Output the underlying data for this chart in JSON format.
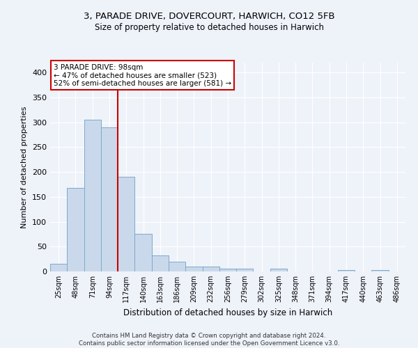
{
  "title1": "3, PARADE DRIVE, DOVERCOURT, HARWICH, CO12 5FB",
  "title2": "Size of property relative to detached houses in Harwich",
  "xlabel": "Distribution of detached houses by size in Harwich",
  "ylabel": "Number of detached properties",
  "categories": [
    "25sqm",
    "48sqm",
    "71sqm",
    "94sqm",
    "117sqm",
    "140sqm",
    "163sqm",
    "186sqm",
    "209sqm",
    "232sqm",
    "256sqm",
    "279sqm",
    "302sqm",
    "325sqm",
    "348sqm",
    "371sqm",
    "394sqm",
    "417sqm",
    "440sqm",
    "463sqm",
    "486sqm"
  ],
  "values": [
    15,
    168,
    305,
    290,
    190,
    76,
    32,
    20,
    10,
    10,
    5,
    6,
    0,
    5,
    0,
    0,
    0,
    3,
    0,
    3,
    0
  ],
  "bar_color": "#c9d9eb",
  "bar_edge_color": "#7fa8c9",
  "vline_x": 3.5,
  "vline_color": "#cc0000",
  "annotation_text": "3 PARADE DRIVE: 98sqm\n← 47% of detached houses are smaller (523)\n52% of semi-detached houses are larger (581) →",
  "annotation_box_color": "white",
  "annotation_box_edge_color": "#cc0000",
  "ylim": [
    0,
    420
  ],
  "yticks": [
    0,
    50,
    100,
    150,
    200,
    250,
    300,
    350,
    400
  ],
  "background_color": "#eef2f9",
  "footer": "Contains HM Land Registry data © Crown copyright and database right 2024.\nContains public sector information licensed under the Open Government Licence v3.0."
}
